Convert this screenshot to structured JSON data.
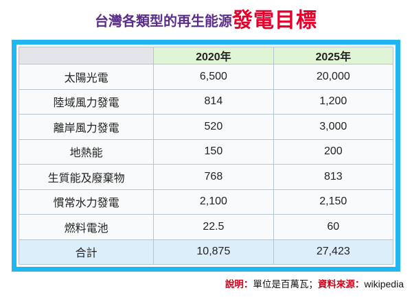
{
  "title": {
    "main": "台灣各類型的再生能源",
    "highlight": "發電目標"
  },
  "table": {
    "columns": [
      "",
      "2020年",
      "2025年"
    ],
    "rows": [
      {
        "label": "太陽光電",
        "v2020": "6,500",
        "v2025": "20,000"
      },
      {
        "label": "陸域風力發電",
        "v2020": "814",
        "v2025": "1,200"
      },
      {
        "label": "離岸風力發電",
        "v2020": "520",
        "v2025": "3,000"
      },
      {
        "label": "地熱能",
        "v2020": "150",
        "v2025": "200"
      },
      {
        "label": "生質能及廢棄物",
        "v2020": "768",
        "v2025": "813"
      },
      {
        "label": "慣常水力發電",
        "v2020": "2,100",
        "v2025": "2,150"
      },
      {
        "label": "燃料電池",
        "v2020": "22.5",
        "v2025": "60"
      }
    ],
    "total": {
      "label": "合計",
      "v2020": "10,875",
      "v2025": "27,423"
    }
  },
  "footnote": {
    "note_label": "說明：",
    "note_text": "單位是百萬瓦；",
    "source_label": "資料來源：",
    "source": "wikipedia"
  },
  "colors": {
    "title": "#5b2d8a",
    "highlight": "#e4002b",
    "frame": "#1fb6f2",
    "header_bg": "#dff5d6",
    "total_bg": "#dceefa"
  }
}
